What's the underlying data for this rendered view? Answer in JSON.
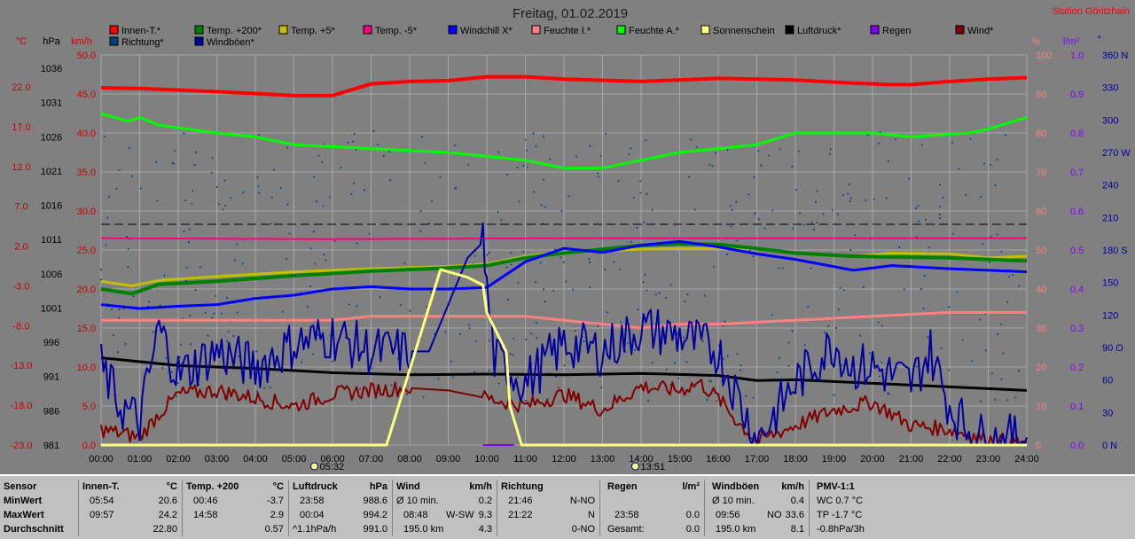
{
  "header": {
    "title": "Freitag, 01.02.2019",
    "station": "Station Göritzhain"
  },
  "axes": {
    "unit_temp": "°C",
    "unit_press": "hPa",
    "unit_wind": "km/h",
    "unit_hum": "%",
    "unit_rain": "l/m²",
    "unit_dir": "°",
    "temp_ticks": [
      "22.0",
      "17.0",
      "12.0",
      "7.0",
      "2.0",
      "-3.0",
      "-8.0",
      "-13.0",
      "-18.0",
      "-23.0"
    ],
    "press_ticks": [
      "1036",
      "1031",
      "1026",
      "1021",
      "1016",
      "1011",
      "1006",
      "1001",
      "996",
      "991",
      "986",
      "981"
    ],
    "wind_ticks": [
      "50.0",
      "45.0",
      "40.0",
      "35.0",
      "30.0",
      "25.0",
      "20.0",
      "15.0",
      "10.0",
      "5.0",
      "0.0"
    ],
    "hum_ticks": [
      "100",
      "90",
      "80",
      "70",
      "60",
      "50",
      "40",
      "30",
      "20",
      "10",
      "0"
    ],
    "rain_ticks": [
      "1.0",
      "0.9",
      "0.8",
      "0.7",
      "0.6",
      "0.5",
      "0.4",
      "0.3",
      "0.2",
      "0.1",
      "0.0"
    ],
    "dir_ticks": [
      "360 N",
      "330",
      "300",
      "270 W",
      "240",
      "210",
      "180 S",
      "150",
      "120",
      "90 O",
      "60",
      "30",
      "0 N"
    ],
    "time_ticks": [
      "00:00",
      "01:00",
      "02:00",
      "03:00",
      "04:00",
      "05:00",
      "06:00",
      "07:00",
      "08:00",
      "09:00",
      "10:00",
      "11:00",
      "12:00",
      "13:00",
      "14:00",
      "15:00",
      "16:00",
      "17:00",
      "18:00",
      "19:00",
      "20:00",
      "21:00",
      "22:00",
      "23:00",
      "24:00"
    ],
    "sun_markers": [
      {
        "time": "05:32",
        "hour": 5.53
      },
      {
        "time": "13:51",
        "hour": 13.85
      }
    ],
    "colors": {
      "temp": "#cc0000",
      "press": "#000000",
      "wind": "#cc0000",
      "hum": "#ff8080",
      "rain": "#8000ff",
      "dir": "#0000a0",
      "grid": "#a8a8a8",
      "plot_bg": "#808080"
    }
  },
  "legend": [
    {
      "label": "Innen-T.*",
      "color": "#ff0000"
    },
    {
      "label": "Temp. +200*",
      "color": "#008000"
    },
    {
      "label": "Temp. +5*",
      "color": "#c0c000"
    },
    {
      "label": "Temp. -5*",
      "color": "#ff0080"
    },
    {
      "label": "Windchill X*",
      "color": "#0000ff"
    },
    {
      "label": "Feuchte I.*",
      "color": "#ff8080"
    },
    {
      "label": "Feuchte A.*",
      "color": "#00ff00"
    },
    {
      "label": "Sonnenschein",
      "color": "#ffff80"
    },
    {
      "label": "Luftdruck*",
      "color": "#000000"
    },
    {
      "label": "Regen",
      "color": "#8000ff"
    },
    {
      "label": "Wind*",
      "color": "#800000"
    },
    {
      "label": "Richtung*",
      "color": "#004080"
    },
    {
      "label": "Windböen*",
      "color": "#0000a0"
    }
  ],
  "chart_data": {
    "type": "line",
    "x_unit": "hour of day (00:00–24:00)",
    "series": [
      {
        "name": "Innen-T.*",
        "axis": "temp",
        "color": "#ff0000",
        "width": 4,
        "points": [
          [
            0,
            22.8
          ],
          [
            1,
            22.7
          ],
          [
            3,
            22.3
          ],
          [
            5,
            21.8
          ],
          [
            6,
            21.8
          ],
          [
            7,
            23.3
          ],
          [
            8,
            23.6
          ],
          [
            9,
            23.7
          ],
          [
            10,
            24.2
          ],
          [
            11,
            24.2
          ],
          [
            12,
            23.9
          ],
          [
            14,
            23.6
          ],
          [
            16,
            24.0
          ],
          [
            18,
            23.8
          ],
          [
            19.5,
            23.4
          ],
          [
            20.5,
            23.2
          ],
          [
            21,
            23.2
          ],
          [
            22,
            23.6
          ],
          [
            23,
            23.9
          ],
          [
            24,
            24.1
          ]
        ]
      },
      {
        "name": "Feuchte A.*",
        "axis": "hum",
        "color": "#00ff00",
        "width": 3,
        "points": [
          [
            0,
            85
          ],
          [
            0.7,
            83
          ],
          [
            1,
            84
          ],
          [
            1.5,
            82
          ],
          [
            3,
            80
          ],
          [
            4,
            79
          ],
          [
            5,
            77
          ],
          [
            7,
            76
          ],
          [
            9,
            75
          ],
          [
            10,
            74
          ],
          [
            11,
            73
          ],
          [
            12,
            71
          ],
          [
            13,
            71
          ],
          [
            14,
            73
          ],
          [
            15,
            75
          ],
          [
            16,
            76
          ],
          [
            17,
            77
          ],
          [
            18,
            80
          ],
          [
            20,
            80
          ],
          [
            21,
            79
          ],
          [
            22.5,
            80
          ],
          [
            23,
            81
          ],
          [
            24,
            84
          ]
        ]
      },
      {
        "name": "Temp. +5*",
        "axis": "temp",
        "color": "#c0c000",
        "width": 3,
        "points": [
          [
            0,
            -2.0
          ],
          [
            0.8,
            -2.6
          ],
          [
            1.5,
            -1.9
          ],
          [
            3,
            -1.4
          ],
          [
            5,
            -0.8
          ],
          [
            7,
            -0.4
          ],
          [
            9,
            -0.1
          ],
          [
            10,
            0.2
          ],
          [
            11,
            1.2
          ],
          [
            12,
            1.7
          ],
          [
            13,
            1.9
          ],
          [
            14,
            2.1
          ],
          [
            15,
            2.2
          ],
          [
            16,
            2.2
          ],
          [
            17,
            2.2
          ],
          [
            18,
            1.6
          ],
          [
            19.5,
            1.2
          ],
          [
            20.5,
            1.6
          ],
          [
            22,
            1.5
          ],
          [
            23,
            1.0
          ],
          [
            24,
            1.2
          ]
        ]
      },
      {
        "name": "Temp. +200*",
        "axis": "temp",
        "color": "#008000",
        "width": 4,
        "points": [
          [
            0,
            -3.0
          ],
          [
            0.8,
            -3.6
          ],
          [
            1.5,
            -2.4
          ],
          [
            3,
            -2.0
          ],
          [
            5,
            -1.3
          ],
          [
            7,
            -0.7
          ],
          [
            9,
            -0.3
          ],
          [
            10,
            0.0
          ],
          [
            11,
            1.0
          ],
          [
            12,
            1.6
          ],
          [
            13,
            2.1
          ],
          [
            14,
            2.6
          ],
          [
            15,
            2.8
          ],
          [
            16,
            2.7
          ],
          [
            17,
            2.2
          ],
          [
            18,
            1.6
          ],
          [
            19.5,
            1.2
          ],
          [
            20.5,
            1.1
          ],
          [
            22,
            1.0
          ],
          [
            23,
            0.8
          ],
          [
            24,
            0.6
          ]
        ]
      },
      {
        "name": "Windchill X*",
        "axis": "temp",
        "color": "#0000ff",
        "width": 3,
        "points": [
          [
            0,
            -5.0
          ],
          [
            1,
            -5.5
          ],
          [
            2,
            -5.2
          ],
          [
            3,
            -5.0
          ],
          [
            4,
            -4.2
          ],
          [
            5,
            -3.8
          ],
          [
            6,
            -3.0
          ],
          [
            7,
            -2.7
          ],
          [
            8,
            -3.0
          ],
          [
            9,
            -3.0
          ],
          [
            10,
            -2.8
          ],
          [
            11,
            0.5
          ],
          [
            12,
            2.2
          ],
          [
            13,
            1.7
          ],
          [
            14,
            2.6
          ],
          [
            15,
            3.1
          ],
          [
            16,
            2.4
          ],
          [
            17,
            1.5
          ],
          [
            18,
            0.8
          ],
          [
            19.5,
            -0.6
          ],
          [
            20.5,
            0.0
          ],
          [
            22,
            -0.4
          ],
          [
            23,
            -0.6
          ],
          [
            24,
            -0.8
          ]
        ]
      },
      {
        "name": "Temp. -5*",
        "axis": "temp",
        "color": "#ff0080",
        "width": 2,
        "points": [
          [
            0,
            3.5
          ],
          [
            6,
            3.4
          ],
          [
            12,
            3.5
          ],
          [
            18,
            3.5
          ],
          [
            24,
            3.5
          ]
        ]
      },
      {
        "name": "Feuchte I.*",
        "axis": "hum",
        "color": "#ff8080",
        "width": 3,
        "points": [
          [
            0,
            32
          ],
          [
            2,
            32
          ],
          [
            4,
            32
          ],
          [
            6,
            32
          ],
          [
            7,
            33
          ],
          [
            10,
            33
          ],
          [
            11,
            33
          ],
          [
            12,
            32
          ],
          [
            14,
            30
          ],
          [
            15,
            31
          ],
          [
            16,
            31
          ],
          [
            18,
            32
          ],
          [
            20,
            33
          ],
          [
            22,
            34
          ],
          [
            24,
            34
          ]
        ]
      },
      {
        "name": "Luftdruck*",
        "axis": "press",
        "color": "#000000",
        "width": 3,
        "points": [
          [
            0,
            993.3
          ],
          [
            2,
            992.2
          ],
          [
            4,
            991.8
          ],
          [
            6,
            991.2
          ],
          [
            8,
            990.9
          ],
          [
            10,
            991.0
          ],
          [
            12,
            990.9
          ],
          [
            14,
            991.1
          ],
          [
            16,
            990.8
          ],
          [
            17,
            990.1
          ],
          [
            18,
            990.2
          ],
          [
            20,
            989.7
          ],
          [
            22,
            989.2
          ],
          [
            24,
            988.7
          ]
        ]
      },
      {
        "name": "Wind*",
        "axis": "wind",
        "color": "#800000",
        "width": 2,
        "points": [
          [
            0,
            2.0
          ],
          [
            1,
            1.0
          ],
          [
            1.5,
            4.0
          ],
          [
            2,
            6.5
          ],
          [
            3,
            7.0
          ],
          [
            4,
            6.0
          ],
          [
            5,
            5.0
          ],
          [
            6,
            6.5
          ],
          [
            7,
            7.0
          ],
          [
            8,
            7.3
          ],
          [
            9,
            7.0
          ],
          [
            10,
            6.0
          ],
          [
            11,
            5.0
          ],
          [
            12,
            6.5
          ],
          [
            13,
            4.5
          ],
          [
            14,
            7.5
          ],
          [
            15,
            7.0
          ],
          [
            15.5,
            8.0
          ],
          [
            16,
            6.0
          ],
          [
            16.5,
            3.0
          ],
          [
            17,
            0.5
          ],
          [
            18,
            2.5
          ],
          [
            19,
            4.5
          ],
          [
            20,
            5.5
          ],
          [
            20.5,
            4.0
          ],
          [
            21,
            2.5
          ],
          [
            22,
            2.0
          ],
          [
            23,
            0.7
          ],
          [
            24,
            0.3
          ]
        ]
      },
      {
        "name": "Windböen*",
        "axis": "wind",
        "color": "#0000a0",
        "width": 2,
        "points": [
          [
            0,
            10
          ],
          [
            0.5,
            5
          ],
          [
            1,
            3
          ],
          [
            1.5,
            15
          ],
          [
            2,
            9
          ],
          [
            3,
            12
          ],
          [
            4,
            10
          ],
          [
            5,
            13
          ],
          [
            6,
            14
          ],
          [
            7,
            12
          ],
          [
            7.5,
            12
          ],
          [
            8.5,
            12
          ],
          [
            9.5,
            24
          ],
          [
            9.9,
            26
          ],
          [
            10,
            20
          ],
          [
            10.2,
            11
          ],
          [
            11,
            8
          ],
          [
            12,
            13
          ],
          [
            13,
            12
          ],
          [
            14,
            15
          ],
          [
            15,
            14
          ],
          [
            16,
            12
          ],
          [
            17,
            0.5
          ],
          [
            18,
            8
          ],
          [
            19,
            13
          ],
          [
            19.5,
            10
          ],
          [
            20,
            10
          ],
          [
            21,
            8
          ],
          [
            21.5,
            12
          ],
          [
            22,
            5
          ],
          [
            22.5,
            2
          ],
          [
            23,
            0.5
          ],
          [
            24,
            1
          ]
        ]
      },
      {
        "name": "Sonnenschein",
        "axis": "wind",
        "color": "#ffff80",
        "width": 3,
        "points": [
          [
            0,
            0
          ],
          [
            7.4,
            0
          ],
          [
            8.8,
            22.5
          ],
          [
            9.5,
            21.5
          ],
          [
            9.9,
            20.5
          ],
          [
            10,
            17
          ],
          [
            10.3,
            14
          ],
          [
            10.5,
            12
          ],
          [
            10.6,
            5
          ],
          [
            10.9,
            0
          ],
          [
            11,
            0
          ],
          [
            24,
            0
          ]
        ]
      },
      {
        "name": "Regen",
        "axis": "rain",
        "color": "#8000ff",
        "width": 2,
        "points": [
          [
            9.9,
            0
          ],
          [
            10.7,
            0
          ]
        ]
      }
    ],
    "richtung_scatter": {
      "axis": "dir",
      "color": "#004080",
      "note": "wind direction samples, mostly 30–330°"
    },
    "reference_line": {
      "axis": "wind",
      "value": 28.3,
      "style": "dashed",
      "color": "#000000"
    }
  },
  "stats": {
    "rows": [
      "Sensor",
      "MinWert",
      "MaxWert",
      "Durchschnitt"
    ],
    "blocks": [
      {
        "title": "Innen-T.",
        "unit": "°C",
        "min": [
          "05:54",
          "20.6"
        ],
        "max": [
          "09:57",
          "24.2"
        ],
        "avg": [
          "",
          "22.80"
        ]
      },
      {
        "title": "Temp. +200",
        "unit": "°C",
        "min": [
          "00:46",
          "-3.7"
        ],
        "max": [
          "14:58",
          "2.9"
        ],
        "avg": [
          "",
          "0.57"
        ]
      },
      {
        "title": "Luftdruck",
        "unit": "hPa",
        "min": [
          "23:58",
          "988.6"
        ],
        "max": [
          "00:04",
          "994.2"
        ],
        "avg": [
          "^1.1hPa/h",
          "991.0"
        ]
      },
      {
        "title": "Wind",
        "unit": "km/h",
        "min": [
          "Ø 10 min.",
          "",
          "0.2"
        ],
        "max": [
          "08:48",
          "W-SW",
          "9.3"
        ],
        "avg": [
          "195.0 km",
          "",
          "4.3"
        ]
      },
      {
        "title": "Richtung",
        "unit": "",
        "min": [
          "21:46",
          "N-NO"
        ],
        "max": [
          "21:22",
          "N"
        ],
        "avg": [
          "",
          "0-NO"
        ]
      },
      {
        "title": "Regen",
        "unit": "l/m²",
        "min": [
          "",
          ""
        ],
        "max": [
          "23:58",
          "0.0"
        ],
        "avg": [
          "Gesamt:",
          "0.0"
        ]
      },
      {
        "title": "Windböen",
        "unit": "km/h",
        "min": [
          "Ø 10 min.",
          "",
          "0.4"
        ],
        "max": [
          "09:56",
          "NO",
          "33.6"
        ],
        "avg": [
          "195.0 km",
          "",
          "8.1"
        ]
      },
      {
        "title": "PMV-1:1",
        "unit": "",
        "min": [
          "WC 0.7 °C"
        ],
        "max": [
          "TP -1.7 °C"
        ],
        "avg": [
          "-0.8hPa/3h"
        ]
      }
    ]
  }
}
